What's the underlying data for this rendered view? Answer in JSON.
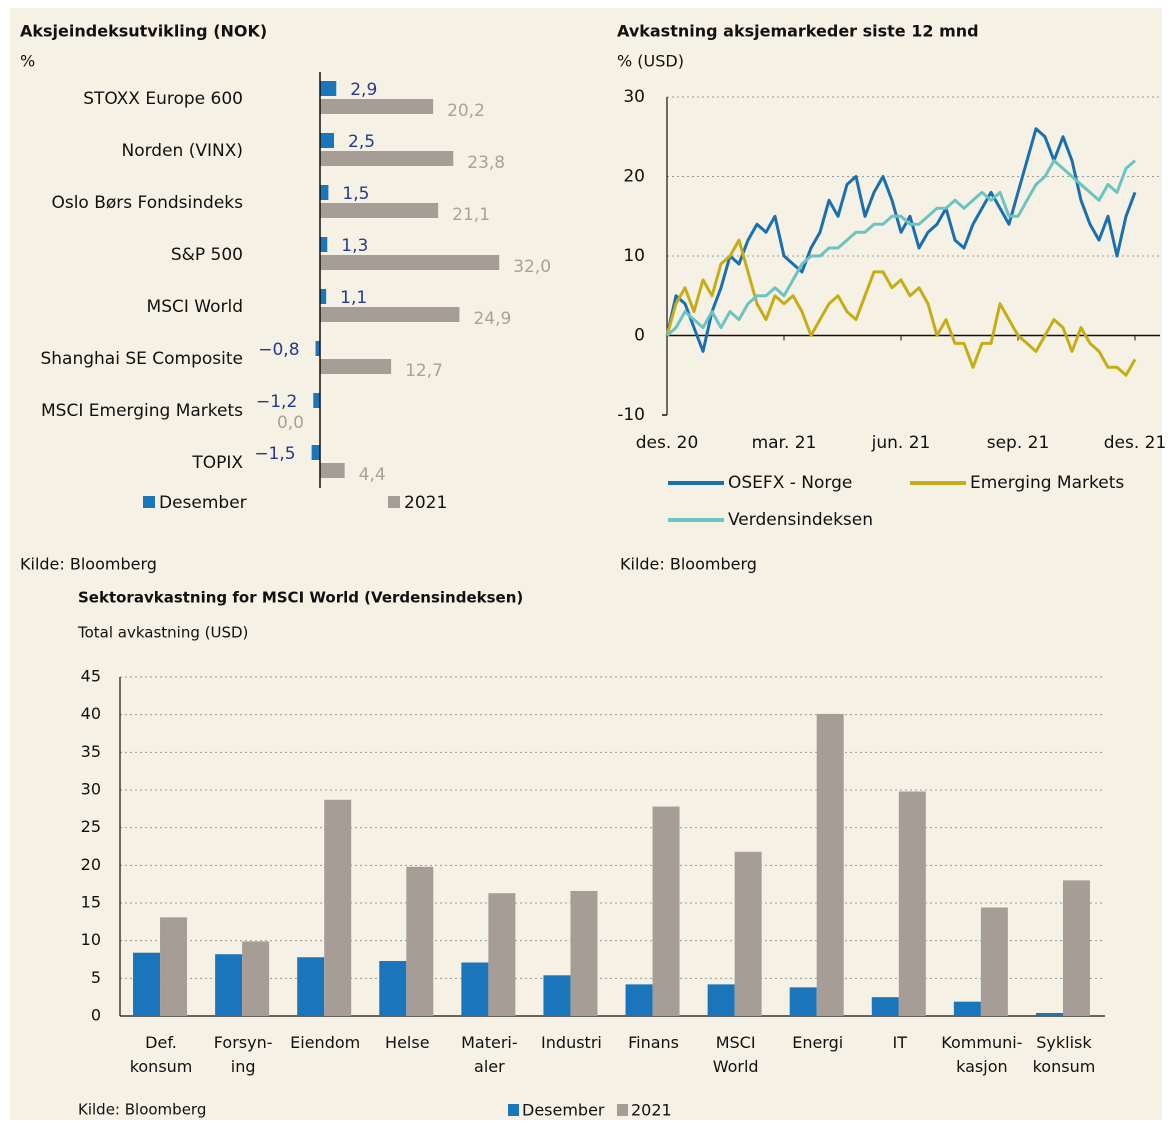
{
  "chart_data": [
    {
      "type": "hbar",
      "title": "Aksjeindeksutvikling (NOK)",
      "unit": "%",
      "categories": [
        "STOXX Europe 600",
        "Norden (VINX)",
        "Oslo Børs Fondsindeks",
        "S&P 500",
        "MSCI World",
        "Shanghai SE Composite",
        "MSCI Emerging Markets",
        "TOPIX"
      ],
      "xlim": [
        -2,
        35
      ],
      "series": [
        {
          "name": "Desember",
          "color": "#1b75bb",
          "label_color": "#253a8a",
          "values": [
            2.9,
            2.5,
            1.5,
            1.3,
            1.1,
            -0.8,
            -1.2,
            -1.5
          ],
          "value_labels": [
            "2,9",
            "2,5",
            "1,5",
            "1,3",
            "1,1",
            "−0,8",
            "−1,2",
            "−1,5"
          ]
        },
        {
          "name": "2021",
          "color": "#a59d96",
          "label_color": "#a8a29b",
          "values": [
            20.2,
            23.8,
            21.1,
            32.0,
            24.9,
            12.7,
            0.0,
            4.4
          ],
          "value_labels": [
            "20,2",
            "23,8",
            "21,1",
            "32,0",
            "24,9",
            "12,7",
            "0,0",
            "4,4"
          ]
        }
      ],
      "source": "Kilde: Bloomberg"
    },
    {
      "type": "line",
      "title": "Avkastning aksjemarkeder siste 12 mnd",
      "unit": "% (USD)",
      "x": [
        0,
        1,
        2,
        3,
        4,
        5,
        6,
        7,
        8,
        9,
        10,
        11,
        12,
        13,
        14,
        15,
        16,
        17,
        18,
        19,
        20,
        21,
        22,
        23,
        24,
        25,
        26,
        27,
        28,
        29,
        30,
        31,
        32,
        33,
        34,
        35,
        36,
        37,
        38,
        39,
        40,
        41,
        42,
        43,
        44,
        45,
        46,
        47,
        48,
        49,
        50,
        51,
        52
      ],
      "xlim": [
        0,
        52
      ],
      "xticks": [
        {
          "value": 0,
          "label": "des. 20"
        },
        {
          "value": 13,
          "label": "mar. 21"
        },
        {
          "value": 26,
          "label": "jun. 21"
        },
        {
          "value": 39,
          "label": "sep. 21"
        },
        {
          "value": 52,
          "label": "des. 21"
        }
      ],
      "ylim": [
        -10,
        30
      ],
      "yticks": [
        30,
        20,
        10,
        0,
        -10
      ],
      "grid": true,
      "series": [
        {
          "name": "OSEFX - Norge",
          "color": "#1a6fae",
          "values": [
            0,
            5,
            4,
            1,
            -2,
            3,
            6,
            10,
            9,
            12,
            14,
            13,
            15,
            10,
            9,
            8,
            11,
            13,
            17,
            15,
            19,
            20,
            15,
            18,
            20,
            17,
            13,
            15,
            11,
            13,
            14,
            16,
            12,
            11,
            14,
            16,
            18,
            16,
            14,
            18,
            22,
            26,
            25,
            22,
            25,
            22,
            17,
            14,
            12,
            15,
            10,
            15,
            18
          ]
        },
        {
          "name": "Emerging Markets",
          "color": "#c6ad17",
          "values": [
            0,
            4,
            6,
            3,
            7,
            5,
            9,
            10,
            12,
            8,
            4,
            2,
            5,
            4,
            5,
            3,
            0,
            2,
            4,
            5,
            3,
            2,
            5,
            8,
            8,
            6,
            7,
            5,
            6,
            4,
            0,
            2,
            -1,
            -1,
            -4,
            -1,
            -1,
            4,
            2,
            0,
            -1,
            -2,
            0,
            2,
            1,
            -2,
            1,
            -1,
            -2,
            -4,
            -4,
            -5,
            -3
          ]
        },
        {
          "name": "Verdensindeksen",
          "color": "#6cc3c0",
          "values": [
            0,
            1,
            3,
            2,
            1,
            3,
            1,
            3,
            2,
            4,
            5,
            5,
            6,
            5,
            7,
            9,
            10,
            10,
            11,
            11,
            12,
            13,
            13,
            14,
            14,
            15,
            15,
            14,
            14,
            15,
            16,
            16,
            17,
            16,
            17,
            18,
            17,
            18,
            15,
            15,
            17,
            19,
            20,
            22,
            21,
            20,
            19,
            18,
            17,
            19,
            18,
            21,
            22
          ]
        }
      ],
      "source": "Kilde: Bloomberg"
    },
    {
      "type": "bar",
      "title": "Sektoravkastning for MSCI World (Verdensindeksen)",
      "unit": "Total avkastning (USD)",
      "categories": [
        "Def.\nkonsum",
        "Forsyn-\ning",
        "Eiendom",
        "Helse",
        "Materi-\naler",
        "Industri",
        "Finans",
        "MSCI\nWorld",
        "Energi",
        "IT",
        "Kommuni-\nkasjon",
        "Syklisk\nkonsum"
      ],
      "ylim": [
        0,
        45
      ],
      "yticks": [
        0,
        5,
        10,
        15,
        20,
        25,
        30,
        35,
        40,
        45
      ],
      "grid": true,
      "series": [
        {
          "name": "Desember",
          "color": "#1b75bb",
          "values": [
            8.4,
            8.2,
            7.8,
            7.3,
            7.1,
            5.4,
            4.2,
            4.2,
            3.8,
            2.5,
            1.9,
            0.4
          ]
        },
        {
          "name": "2021",
          "color": "#a59d96",
          "values": [
            13.1,
            9.9,
            28.7,
            19.8,
            16.3,
            16.6,
            27.8,
            21.8,
            40.1,
            29.8,
            14.4,
            18.0
          ]
        }
      ],
      "source": "Kilde: Bloomberg"
    }
  ]
}
